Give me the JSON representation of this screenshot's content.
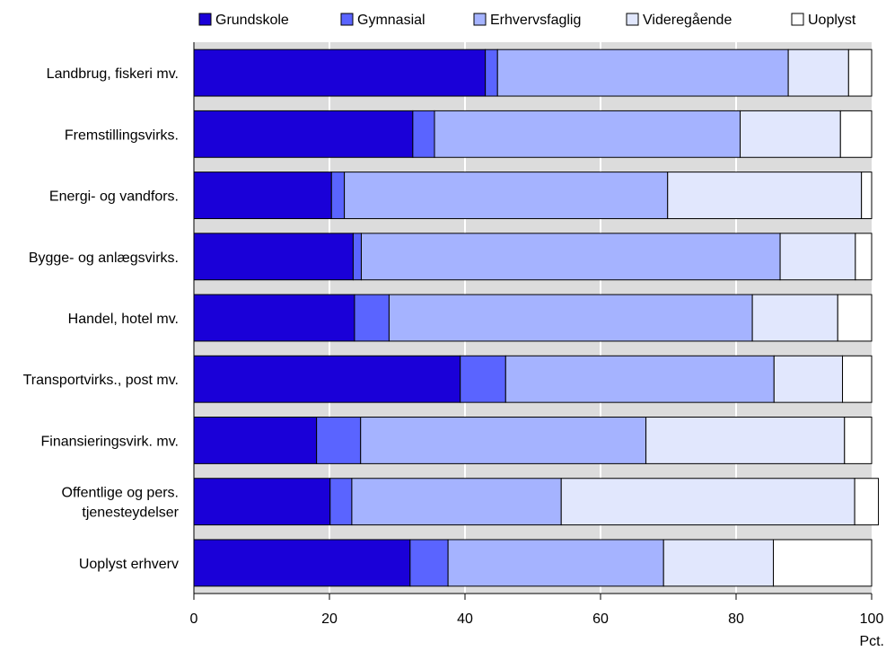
{
  "chart_data": {
    "type": "bar",
    "orientation": "horizontal",
    "stacked": true,
    "title": "",
    "xlabel": "",
    "ylabel": "",
    "unit": "Pct.",
    "xlim": [
      0,
      100
    ],
    "x_ticks": [
      "0",
      "20",
      "40",
      "60",
      "80",
      "100"
    ],
    "grid": true,
    "legend_position": "top",
    "categories": [
      [
        "Landbrug, fiskeri mv."
      ],
      [
        "Fremstillingsvirks."
      ],
      [
        "Energi- og vandfors."
      ],
      [
        "Bygge- og anlægsvirks."
      ],
      [
        "Handel, hotel mv."
      ],
      [
        "Transportvirks., post mv."
      ],
      [
        "Finansieringsvirk. mv."
      ],
      [
        "Offentlige og pers.",
        "tjenesteydelser"
      ],
      [
        "Uoplyst erhverv"
      ]
    ],
    "series": [
      {
        "name": "Grundskole",
        "color": "#1a00d8",
        "values": [
          43.0,
          32.3,
          20.3,
          23.5,
          23.7,
          39.3,
          18.1,
          20.1,
          31.9
        ]
      },
      {
        "name": "Gymnasial",
        "color": "#5a64ff",
        "values": [
          1.8,
          3.2,
          1.9,
          1.2,
          5.1,
          6.7,
          6.5,
          3.2,
          5.6
        ]
      },
      {
        "name": "Erhvervsfaglig",
        "color": "#a5b3ff",
        "values": [
          42.9,
          45.1,
          47.7,
          61.8,
          53.6,
          39.6,
          42.1,
          30.9,
          31.8
        ]
      },
      {
        "name": "Videregående",
        "color": "#e1e7fd",
        "values": [
          8.9,
          14.8,
          28.6,
          11.1,
          12.6,
          10.1,
          29.3,
          43.3,
          16.2
        ]
      },
      {
        "name": "Uoplyst",
        "color": "#ffffff",
        "values": [
          3.4,
          4.6,
          1.5,
          2.4,
          5.0,
          4.3,
          4.0,
          3.5,
          14.5
        ]
      }
    ]
  }
}
